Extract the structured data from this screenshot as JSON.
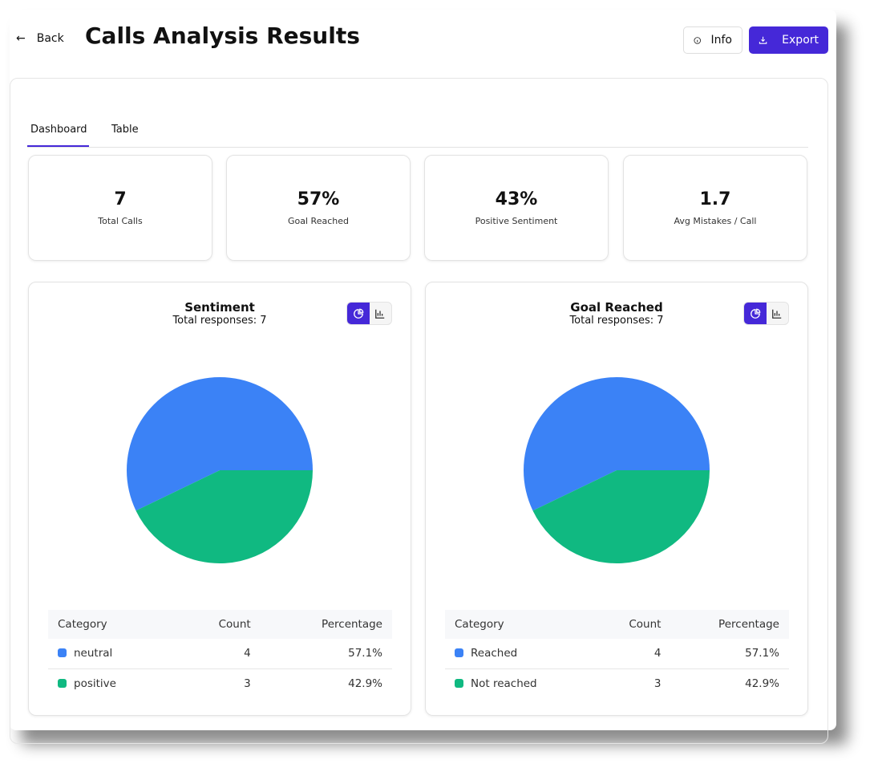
{
  "header": {
    "back_label": "Back",
    "title": "Calls Analysis Results",
    "info_label": "Info",
    "export_label": "Export"
  },
  "tabs": [
    {
      "label": "Dashboard"
    },
    {
      "label": "Table"
    }
  ],
  "stats": [
    {
      "value": "7",
      "label": "Total Calls"
    },
    {
      "value": "57%",
      "label": "Goal Reached"
    },
    {
      "value": "43%",
      "label": "Positive Sentiment"
    },
    {
      "value": "1.7",
      "label": "Avg Mistakes / Call"
    }
  ],
  "colors": {
    "accent": "#4528d8",
    "blue": "#3b82f6",
    "green": "#10b981"
  },
  "chart_data": [
    {
      "type": "pie",
      "title": "Sentiment",
      "subtitle": "Total responses: 7",
      "headers": [
        "Category",
        "Count",
        "Percentage"
      ],
      "rows": [
        {
          "category": "neutral",
          "count": "4",
          "percentage": "57.1%",
          "value": 4,
          "color": "#3b82f6"
        },
        {
          "category": "positive",
          "count": "3",
          "percentage": "42.9%",
          "value": 3,
          "color": "#10b981"
        }
      ]
    },
    {
      "type": "pie",
      "title": "Goal Reached",
      "subtitle": "Total responses: 7",
      "headers": [
        "Category",
        "Count",
        "Percentage"
      ],
      "rows": [
        {
          "category": "Reached",
          "count": "4",
          "percentage": "57.1%",
          "value": 4,
          "color": "#3b82f6"
        },
        {
          "category": "Not reached",
          "count": "3",
          "percentage": "42.9%",
          "value": 3,
          "color": "#10b981"
        }
      ]
    }
  ]
}
